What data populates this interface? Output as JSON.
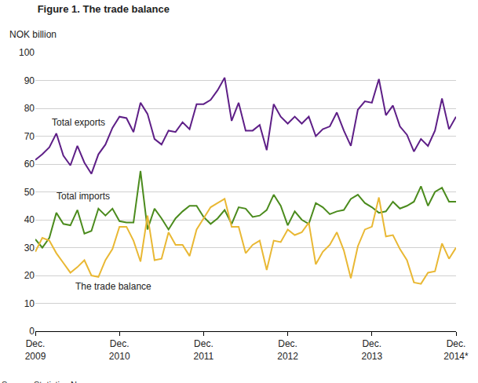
{
  "chart_data": {
    "type": "line",
    "title": "Figure 1. The trade balance",
    "y_label": "NOK billion",
    "source": "Source: Statistics Norway.",
    "categories": [
      "Dec.\n2009",
      null,
      null,
      null,
      null,
      null,
      null,
      null,
      null,
      null,
      null,
      null,
      "Dec.\n2010",
      null,
      null,
      null,
      null,
      null,
      null,
      null,
      null,
      null,
      null,
      null,
      "Dec.\n2011",
      null,
      null,
      null,
      null,
      null,
      null,
      null,
      null,
      null,
      null,
      null,
      "Dec.\n2012",
      null,
      null,
      null,
      null,
      null,
      null,
      null,
      null,
      null,
      null,
      null,
      "Dec.\n2013",
      null,
      null,
      null,
      null,
      null,
      null,
      null,
      null,
      null,
      null,
      null,
      "Dec.\n2014*"
    ],
    "series": [
      {
        "name": "Total exports",
        "color": "#5e1f87",
        "values": [
          61.5,
          63.5,
          66,
          71,
          63,
          59.5,
          66.5,
          60.5,
          56.5,
          63.5,
          67,
          73,
          77,
          76.5,
          71.5,
          82,
          78,
          69,
          67,
          72,
          71.5,
          75,
          72.5,
          81.5,
          81.5,
          83,
          86.5,
          91,
          75.5,
          82,
          72,
          72,
          74,
          65,
          81.5,
          77,
          74.5,
          77,
          74.5,
          77,
          70,
          72.5,
          73.5,
          78.5,
          72,
          66.5,
          79.5,
          82.5,
          82,
          90.5,
          77.5,
          81,
          73.5,
          70.5,
          64.5,
          69,
          66.5,
          72,
          83.5,
          72.5,
          77
        ]
      },
      {
        "name": "Total imports",
        "color": "#4b8b1d",
        "values": [
          33,
          30,
          33.5,
          42.5,
          38.5,
          38,
          43.5,
          35,
          36,
          44,
          41.5,
          44,
          39.5,
          39,
          39,
          57.5,
          36.5,
          44,
          40.5,
          36.5,
          40.5,
          43,
          45,
          45,
          41,
          38.5,
          40.5,
          43.5,
          38.5,
          44.5,
          44,
          41,
          41.5,
          43.5,
          49,
          45,
          38,
          43,
          40,
          38.5,
          46,
          44.5,
          42,
          43,
          43.5,
          47.5,
          49,
          46,
          44.5,
          42.5,
          43,
          46.5,
          44,
          45,
          46.5,
          52,
          45,
          50,
          51.5,
          46.5,
          46.5
        ]
      },
      {
        "name": "The trade balance",
        "color": "#e9b834",
        "values": [
          28.5,
          33.5,
          32.5,
          28,
          24.5,
          21,
          23,
          25.5,
          20,
          19.5,
          25.5,
          29.5,
          37.5,
          37.5,
          32.5,
          25,
          41.5,
          25.5,
          26,
          35.5,
          31,
          31,
          27,
          36.5,
          40.5,
          44.5,
          46,
          47.5,
          37.5,
          37.5,
          28,
          31,
          32.5,
          22,
          32.5,
          32,
          36.5,
          34.5,
          35.5,
          39,
          24,
          28.5,
          31,
          35.5,
          29,
          19,
          30.5,
          36.5,
          37.5,
          48,
          34,
          34.5,
          29.5,
          25.5,
          17.5,
          17,
          21,
          21.5,
          31.5,
          26,
          30
        ]
      }
    ],
    "ylim": [
      0,
      100
    ],
    "yticks": [
      0,
      10,
      20,
      30,
      40,
      50,
      60,
      70,
      80,
      90,
      100
    ],
    "grid": true
  }
}
